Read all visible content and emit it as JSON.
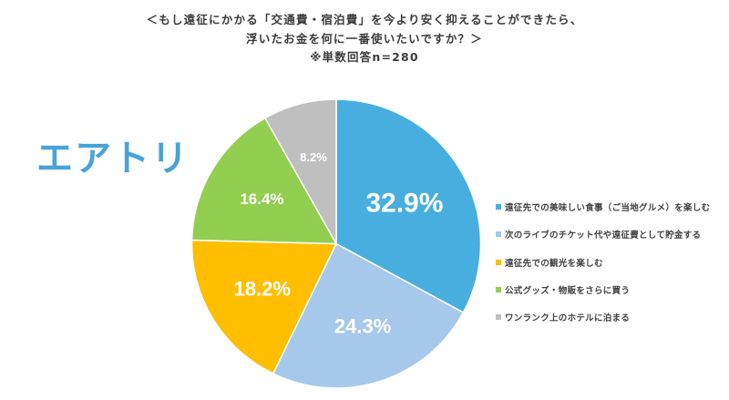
{
  "header": {
    "title_line1": "＜もし遠征にかかる「交通費・宿泊費」を今より安く抑えることができたら、",
    "title_line2": "浮いたお金を何に一番使いたいですか？＞",
    "note": "※単数回答n=280"
  },
  "logo": {
    "text": "エアトリ",
    "color": "#4AA3D8"
  },
  "chart_data": {
    "type": "pie",
    "title": "＜もし遠征にかかる「交通費・宿泊費」を今より安く抑えることができたら、浮いたお金を何に一番使いたいですか？＞",
    "subtitle": "※単数回答n=280",
    "start_angle": "12 o'clock, clockwise",
    "legend_position": "right",
    "categories": [
      "遠征先での美味しい食事（ご当地グルメ）を楽しむ",
      "次のライブのチケット代や遠征費として貯金する",
      "遠征先での観光を楽しむ",
      "公式グッズ・物販をさらに買う",
      "ワンランク上のホテルに泊まる"
    ],
    "values": [
      32.9,
      24.3,
      18.2,
      16.4,
      8.2
    ],
    "labels": [
      "32.9%",
      "24.3%",
      "18.2%",
      "16.4%",
      "8.2%"
    ],
    "colors": [
      "#48AEE0",
      "#A6C8EA",
      "#FFBE00",
      "#92CE50",
      "#BFBFBF"
    ],
    "unit": "%"
  },
  "legend": {
    "items": [
      {
        "label": "遠征先での美味しい食事（ご当地グルメ）を楽しむ",
        "color": "#48AEE0"
      },
      {
        "label": "次のライブのチケット代や遠征費として貯金する",
        "color": "#A6C8EA"
      },
      {
        "label": "遠征先での観光を楽しむ",
        "color": "#FFBE00"
      },
      {
        "label": "公式グッズ・物販をさらに買う",
        "color": "#92CE50"
      },
      {
        "label": "ワンランク上のホテルに泊まる",
        "color": "#BFBFBF"
      }
    ]
  }
}
